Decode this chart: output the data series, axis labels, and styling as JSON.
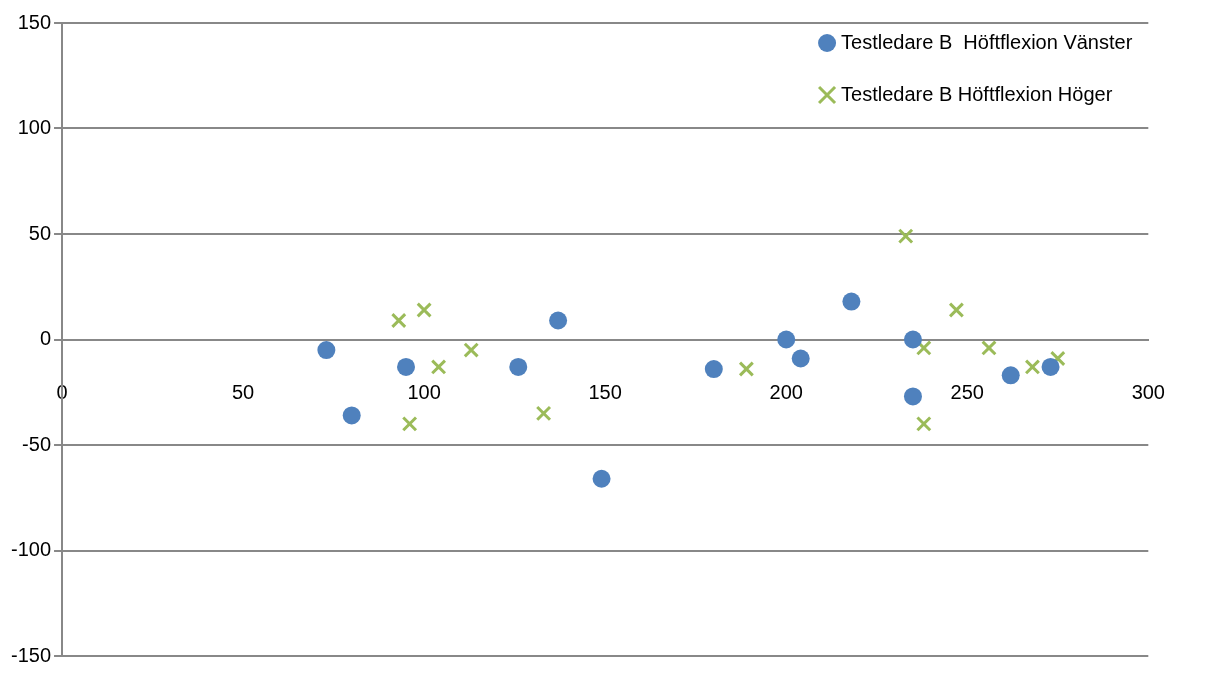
{
  "chart_data": {
    "type": "scatter",
    "xlim": [
      0,
      300
    ],
    "xticks": [
      0,
      50,
      100,
      150,
      200,
      250,
      300
    ],
    "ylim": [
      -150,
      150
    ],
    "yticks": [
      -150,
      -100,
      -50,
      0,
      50,
      100,
      150
    ],
    "grid": "y",
    "legend": "top right",
    "series": [
      {
        "name": "Testledare B  Höftflexion Vänster",
        "color": "#4f81bd",
        "marker": "circle",
        "x": [
          73,
          80,
          95,
          126,
          137,
          149,
          180,
          200,
          204,
          218,
          235,
          235,
          262,
          273
        ],
        "values": [
          -5,
          -36,
          -13,
          -13,
          9,
          -66,
          -14,
          0,
          -9,
          18,
          0,
          -27,
          -17,
          -13
        ]
      },
      {
        "name": "Testledare B Höftflexion Höger",
        "color": "#9bbb59",
        "marker": "cross",
        "x": [
          93,
          100,
          104,
          113,
          96,
          133,
          189,
          233,
          238,
          247,
          238,
          256,
          268,
          275
        ],
        "values": [
          9,
          14,
          -13,
          -5,
          -40,
          -35,
          -14,
          49,
          -4,
          14,
          -40,
          -4,
          -13,
          -9
        ]
      }
    ]
  }
}
